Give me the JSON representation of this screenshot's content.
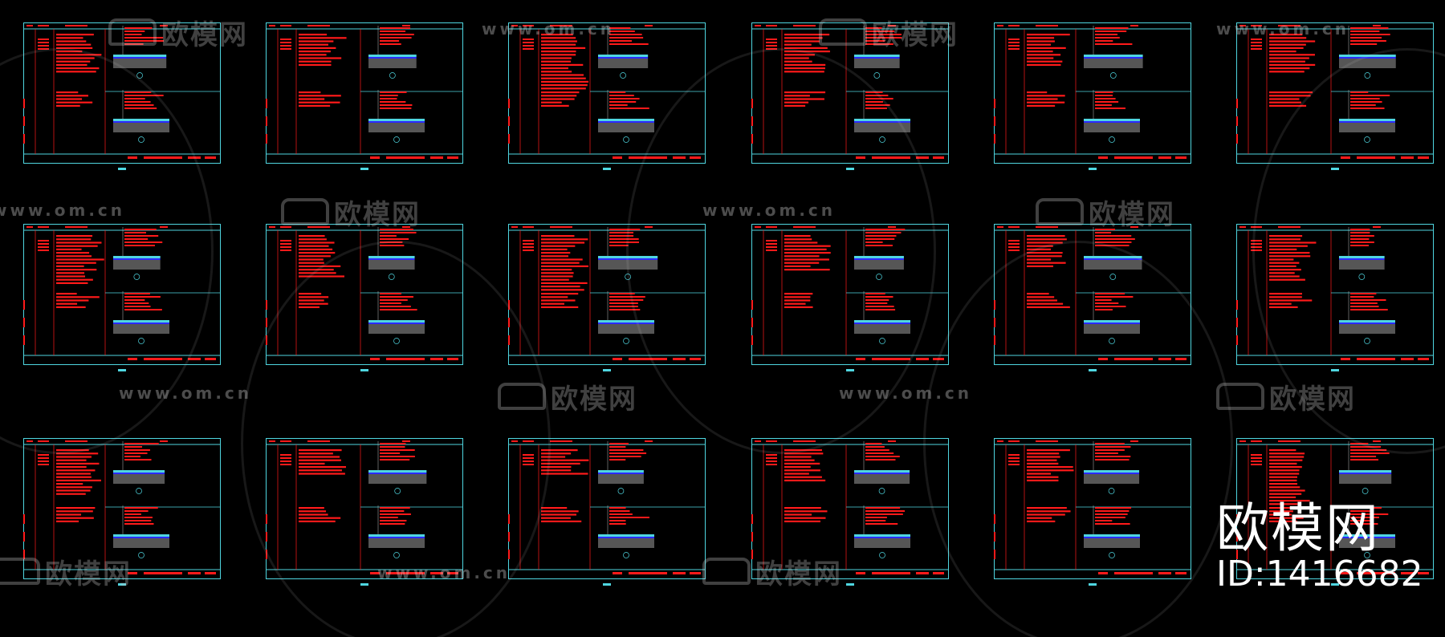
{
  "colors": {
    "background": "#000000",
    "frame": "#4fd6e0",
    "annotation": "#ff1a1a",
    "hatch": "#bfbfbf",
    "accent_blue": "#2a2aff"
  },
  "watermark": {
    "logo_text": "欧模网",
    "url": "www.om.cn"
  },
  "overlay": {
    "logo_text": "欧模网",
    "id_label": "ID:1416682"
  },
  "sheets": {
    "rows": 3,
    "columns": 6
  }
}
